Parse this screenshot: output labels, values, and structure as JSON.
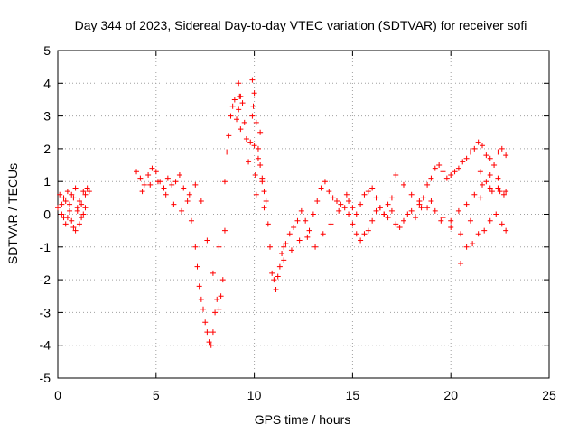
{
  "chart_data": {
    "type": "scatter",
    "title": "Day 344 of 2023, Sidereal Day-to-day VTEC variation (SDTVAR) for receiver sofi",
    "xlabel": "GPS time / hours",
    "ylabel": "SDTVAR / TECUs",
    "xlim": [
      0,
      25
    ],
    "ylim": [
      -5,
      5
    ],
    "xticks": [
      0,
      5,
      10,
      15,
      20,
      25
    ],
    "yticks": [
      -5,
      -4,
      -3,
      -2,
      -1,
      0,
      1,
      2,
      3,
      4,
      5
    ],
    "grid": true,
    "marker": "plus",
    "color": "#ff0000",
    "series": [
      {
        "name": "SDTVAR",
        "x": [
          0.0,
          0.1,
          0.2,
          0.3,
          0.4,
          0.5,
          0.6,
          0.7,
          0.8,
          0.9,
          1.0,
          1.1,
          1.2,
          1.3,
          1.4,
          1.5,
          1.6,
          0.2,
          0.4,
          0.6,
          0.8,
          1.0,
          1.2,
          1.4,
          0.3,
          0.5,
          0.7,
          0.9,
          1.1,
          1.3,
          4.0,
          4.2,
          4.4,
          4.6,
          4.8,
          5.0,
          5.2,
          5.4,
          5.6,
          5.8,
          6.0,
          6.2,
          6.4,
          6.6,
          6.8,
          7.0,
          7.1,
          7.2,
          7.3,
          7.4,
          7.5,
          7.6,
          7.7,
          7.8,
          7.9,
          8.0,
          8.1,
          8.2,
          8.3,
          8.4,
          4.3,
          4.7,
          5.1,
          5.5,
          5.9,
          6.3,
          6.7,
          7.0,
          7.3,
          7.6,
          7.9,
          8.2,
          8.5,
          8.5,
          8.6,
          8.7,
          8.8,
          8.9,
          9.0,
          9.1,
          9.2,
          9.3,
          9.4,
          9.5,
          9.6,
          9.7,
          9.8,
          9.9,
          10.0,
          10.1,
          10.2,
          10.3,
          10.4,
          10.5,
          10.6,
          10.7,
          10.8,
          10.9,
          11.0,
          11.1,
          11.2,
          11.3,
          11.4,
          11.5,
          9.2,
          9.25,
          9.3,
          9.9,
          9.95,
          10.0,
          10.05,
          10.1,
          10.2,
          10.3,
          10.4,
          10.5,
          11.6,
          11.8,
          12.0,
          12.2,
          12.4,
          12.6,
          12.8,
          13.0,
          13.2,
          13.4,
          13.6,
          13.8,
          14.0,
          14.2,
          14.4,
          14.6,
          14.8,
          15.0,
          15.2,
          15.4,
          15.6,
          15.8,
          16.0,
          16.2,
          16.4,
          16.6,
          16.8,
          17.0,
          11.5,
          11.9,
          12.3,
          12.7,
          13.1,
          13.5,
          13.9,
          14.3,
          14.7,
          14.8,
          15.0,
          15.2,
          15.4,
          15.6,
          15.8,
          16.0,
          16.2,
          16.4,
          16.6,
          16.8,
          17.0,
          17.2,
          17.4,
          17.6,
          17.8,
          18.0,
          18.2,
          18.4,
          18.6,
          18.8,
          19.0,
          19.2,
          19.4,
          19.6,
          19.8,
          20.0,
          20.2,
          20.4,
          20.6,
          20.8,
          21.0,
          21.2,
          21.4,
          21.6,
          21.8,
          22.0,
          22.2,
          22.4,
          22.6,
          22.8,
          17.2,
          17.6,
          18.0,
          18.4,
          18.8,
          19.2,
          19.6,
          20.0,
          20.4,
          20.8,
          21.2,
          21.6,
          22.0,
          22.4,
          22.8,
          18.5,
          19.0,
          19.5,
          20.0,
          20.5,
          21.0,
          21.5,
          22.0,
          22.5,
          20.5,
          20.8,
          21.1,
          21.4,
          21.7,
          22.0,
          22.3,
          22.6,
          22.8,
          21.5,
          21.8,
          22.1,
          22.4,
          22.7
        ],
        "y": [
          0.2,
          0.6,
          0.3,
          -0.1,
          0.4,
          0.7,
          0.1,
          -0.2,
          0.5,
          0.8,
          0.2,
          -0.3,
          0.3,
          0.7,
          0.6,
          0.8,
          0.7,
          0.0,
          -0.3,
          0.3,
          -0.4,
          0.1,
          -0.1,
          0.2,
          0.5,
          -0.1,
          0.6,
          -0.5,
          0.4,
          0.0,
          1.3,
          1.1,
          0.9,
          1.2,
          1.4,
          1.3,
          1.0,
          0.8,
          1.1,
          0.9,
          1.0,
          1.2,
          0.8,
          0.4,
          -0.2,
          -1.0,
          -1.6,
          -2.2,
          -2.6,
          -2.9,
          -3.3,
          -3.6,
          -3.9,
          -4.0,
          -3.6,
          -3.0,
          -2.6,
          -2.9,
          -2.5,
          -2.0,
          0.7,
          0.9,
          1.0,
          0.6,
          0.3,
          0.1,
          0.6,
          0.9,
          0.4,
          -0.8,
          -1.8,
          -1.0,
          -0.5,
          1.0,
          1.9,
          2.4,
          3.0,
          3.3,
          3.5,
          2.9,
          3.2,
          3.6,
          3.4,
          2.8,
          2.3,
          1.6,
          2.2,
          3.0,
          3.7,
          2.8,
          2.0,
          1.5,
          1.0,
          0.7,
          0.4,
          -0.3,
          -1.0,
          -1.8,
          -2.0,
          -2.3,
          -1.9,
          -1.6,
          -1.2,
          -1.0,
          4.0,
          3.6,
          2.6,
          4.1,
          3.3,
          2.1,
          1.2,
          0.6,
          1.7,
          2.5,
          1.1,
          0.2,
          -0.9,
          -0.6,
          -0.4,
          -0.2,
          0.1,
          -0.2,
          -0.5,
          0.0,
          0.4,
          0.8,
          1.0,
          0.7,
          0.5,
          0.4,
          0.3,
          0.2,
          0.0,
          -0.3,
          -0.6,
          -0.8,
          -0.6,
          -0.5,
          -0.2,
          0.1,
          0.2,
          0.0,
          0.3,
          0.5,
          -1.4,
          -1.1,
          -0.8,
          -0.7,
          -1.0,
          -0.6,
          -0.3,
          0.1,
          0.6,
          0.4,
          0.2,
          0.0,
          0.3,
          0.6,
          0.7,
          0.8,
          0.5,
          0.2,
          0.0,
          -0.1,
          0.1,
          -0.3,
          -0.4,
          -0.2,
          0.0,
          0.1,
          -0.1,
          0.3,
          0.5,
          0.9,
          1.1,
          1.4,
          1.5,
          1.3,
          1.1,
          1.2,
          1.3,
          1.4,
          1.6,
          1.7,
          1.9,
          2.0,
          2.2,
          2.1,
          1.8,
          1.7,
          1.5,
          1.9,
          2.0,
          1.8,
          1.2,
          0.9,
          0.6,
          0.4,
          0.2,
          0.1,
          -0.1,
          -0.2,
          0.1,
          0.3,
          0.6,
          0.9,
          1.2,
          1.1,
          0.7,
          0.2,
          0.4,
          -0.2,
          -0.4,
          -0.6,
          -0.2,
          0.5,
          0.8,
          0.7,
          -1.5,
          -1.0,
          -0.9,
          -0.6,
          -0.5,
          -0.2,
          0.0,
          -0.3,
          -0.5,
          1.3,
          1.0,
          0.7,
          0.8,
          0.6
        ]
      }
    ]
  }
}
